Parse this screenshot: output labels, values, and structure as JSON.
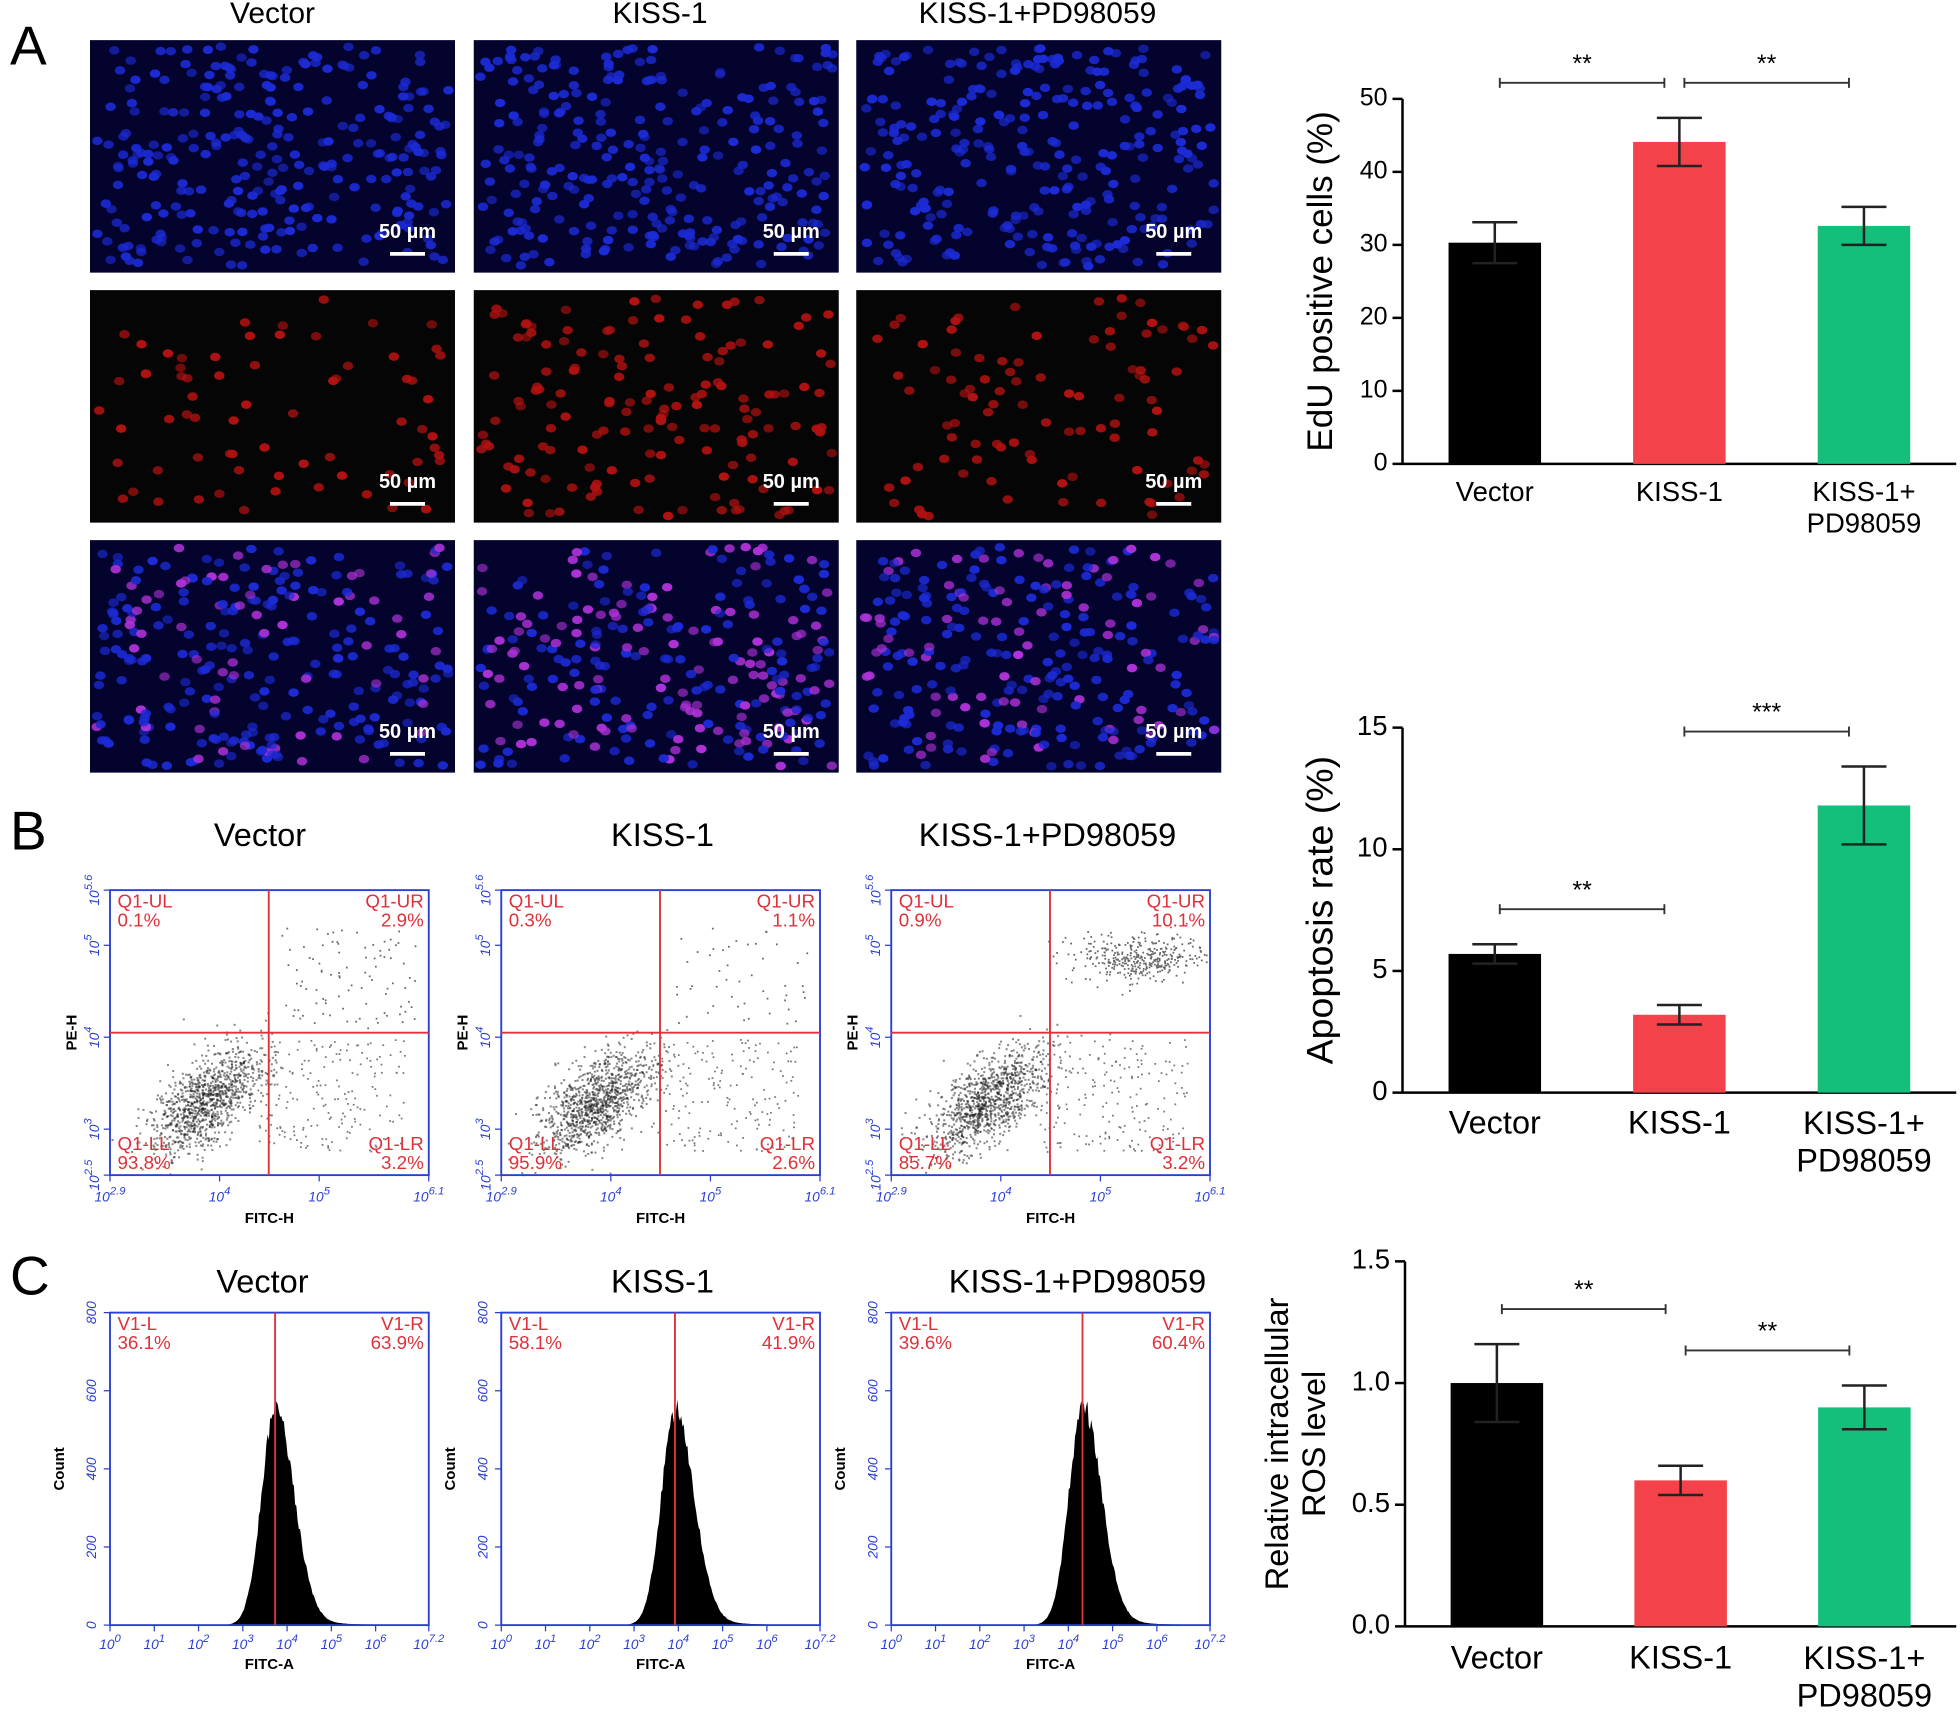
{
  "figure": {
    "panel_labels": [
      "A",
      "B",
      "C"
    ],
    "groups": [
      "Vector",
      "KISS-1",
      "KISS-1+PD98059"
    ],
    "scale_bar": "50 µm",
    "flow_cytometry": {
      "x_label": "FITC-H",
      "y_label": "PE-H",
      "x_ticks": [
        {
          "base": "10",
          "exponent": 2.9
        },
        {
          "base": "10",
          "exponent": 4
        },
        {
          "base": "10",
          "exponent": 5
        },
        {
          "base": "10",
          "exponent": 6.1
        }
      ],
      "y_ticks": [
        {
          "base": "10",
          "exponent": 2.5
        },
        {
          "base": "10",
          "exponent": 3
        },
        {
          "base": "10",
          "exponent": 4
        },
        {
          "base": "10",
          "exponent": 5
        },
        {
          "base": "10",
          "exponent": 5.6
        }
      ],
      "quadrant_names": [
        "Q1-UL",
        "Q1-UR",
        "Q1-LL",
        "Q1-LR"
      ],
      "plots": [
        [
          "0.1%",
          "2.9%",
          "93.8%",
          "3.2%"
        ],
        [
          "0.3%",
          "1.1%",
          "95.9%",
          "2.6%"
        ],
        [
          "0.9%",
          "10.1%",
          "85.7%",
          "3.2%"
        ]
      ]
    },
    "ros_histogram": {
      "x_label": "FITC-A",
      "y_label": "Count",
      "x_ticks": [
        {
          "base": "10",
          "exponent": 0
        },
        {
          "base": "10",
          "exponent": 1
        },
        {
          "base": "10",
          "exponent": 2
        },
        {
          "base": "10",
          "exponent": 3
        },
        {
          "base": "10",
          "exponent": 4
        },
        {
          "base": "10",
          "exponent": 5
        },
        {
          "base": "10",
          "exponent": 6
        },
        {
          "base": "10",
          "exponent": 7.2
        }
      ],
      "y_ticks": [
        0,
        200,
        400,
        600,
        800
      ],
      "gate_names": [
        "V1-L",
        "V1-R"
      ],
      "plots": [
        [
          "36.1%",
          "63.9%"
        ],
        [
          "58.1%",
          "41.9%"
        ],
        [
          "39.6%",
          "60.4%"
        ]
      ]
    }
  },
  "chart_data": [
    {
      "type": "bar",
      "ylabel": "EdU positive cells (%)",
      "categories": [
        "Vector",
        "KISS-1",
        "KISS-1+\nPD98059"
      ],
      "values": [
        30.3,
        44.1,
        32.6
      ],
      "errors": [
        2.8,
        3.3,
        2.6
      ],
      "colors": [
        "#000000",
        "#f4424a",
        "#13bf7b"
      ],
      "ylim": [
        0,
        50
      ],
      "yticks": [
        0,
        10,
        20,
        30,
        40,
        50
      ],
      "brackets": [
        {
          "label": "**",
          "between": [
            "Vector",
            "KISS-1"
          ]
        },
        {
          "label": "**",
          "between": [
            "KISS-1",
            "KISS-1+\nPD98059"
          ]
        }
      ]
    },
    {
      "type": "bar",
      "ylabel": "Apoptosis rate (%)",
      "categories": [
        "Vector",
        "KISS-1",
        "KISS-1+\nPD98059"
      ],
      "values": [
        5.7,
        3.2,
        11.8
      ],
      "errors": [
        0.4,
        0.4,
        1.6
      ],
      "colors": [
        "#000000",
        "#f4424a",
        "#13bf7b"
      ],
      "ylim": [
        0,
        15
      ],
      "yticks": [
        0,
        5,
        10,
        15
      ],
      "brackets": [
        {
          "label": "**",
          "between": [
            "Vector",
            "KISS-1"
          ]
        },
        {
          "label": "***",
          "between": [
            "KISS-1",
            "KISS-1+\nPD98059"
          ]
        }
      ]
    },
    {
      "type": "bar",
      "ylabel": "Relative intracellular\nROS level",
      "categories": [
        "Vector",
        "KISS-1",
        "KISS-1+\nPD98059"
      ],
      "values": [
        1.0,
        0.6,
        0.9
      ],
      "errors": [
        0.16,
        0.06,
        0.09
      ],
      "colors": [
        "#000000",
        "#f4424a",
        "#13bf7b"
      ],
      "ylim": [
        0,
        1.5
      ],
      "yticks": [
        {
          "value": 0,
          "label": "0.0"
        },
        {
          "value": 0.5,
          "label": "0.5"
        },
        {
          "value": 1,
          "label": "1.0"
        },
        {
          "value": 1.5,
          "label": "1.5"
        }
      ],
      "brackets": [
        {
          "label": "**",
          "between": [
            "Vector",
            "KISS-1"
          ]
        },
        {
          "label": "**",
          "between": [
            "KISS-1",
            "KISS-1+\nPD98059"
          ]
        }
      ]
    }
  ]
}
